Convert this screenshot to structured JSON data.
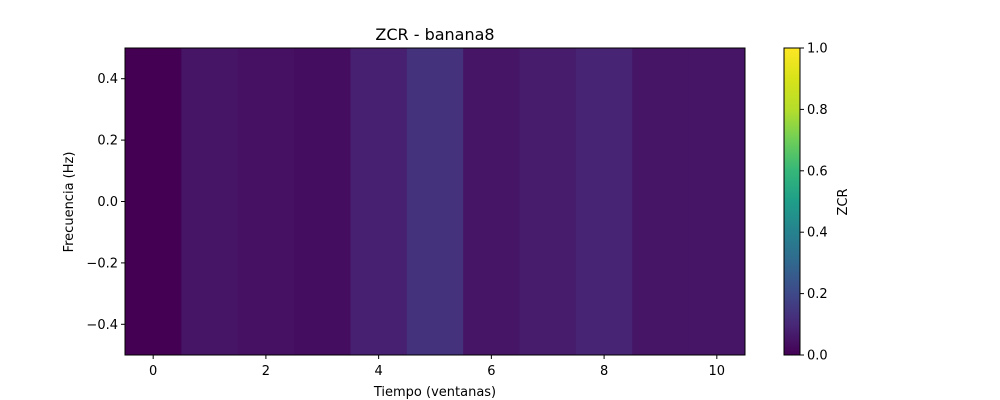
{
  "chart_data": {
    "type": "heatmap",
    "title": "ZCR - banana8",
    "xlabel": "Tiempo (ventanas)",
    "ylabel": "Frecuencia (Hz)",
    "colorbar_label": "ZCR",
    "colormap": "viridis",
    "x": [
      0,
      1,
      2,
      3,
      4,
      5,
      6,
      7,
      8,
      9,
      10
    ],
    "values": [
      0.0,
      0.05,
      0.04,
      0.03,
      0.08,
      0.13,
      0.05,
      0.07,
      0.09,
      0.05,
      0.05
    ],
    "xlim": [
      -0.5,
      10.5
    ],
    "ylim": [
      -0.5,
      0.5
    ],
    "xticks": [
      0,
      2,
      4,
      6,
      8,
      10
    ],
    "yticks": [
      0.4,
      0.2,
      0.0,
      -0.2,
      -0.4
    ],
    "ytick_labels": [
      "0.4",
      "0.2",
      "0.0",
      "−0.2",
      "−0.4"
    ],
    "clim": [
      0.0,
      1.0
    ],
    "colorbar_ticks": [
      "0.0",
      "0.2",
      "0.4",
      "0.6",
      "0.8",
      "1.0"
    ],
    "grid": false
  }
}
